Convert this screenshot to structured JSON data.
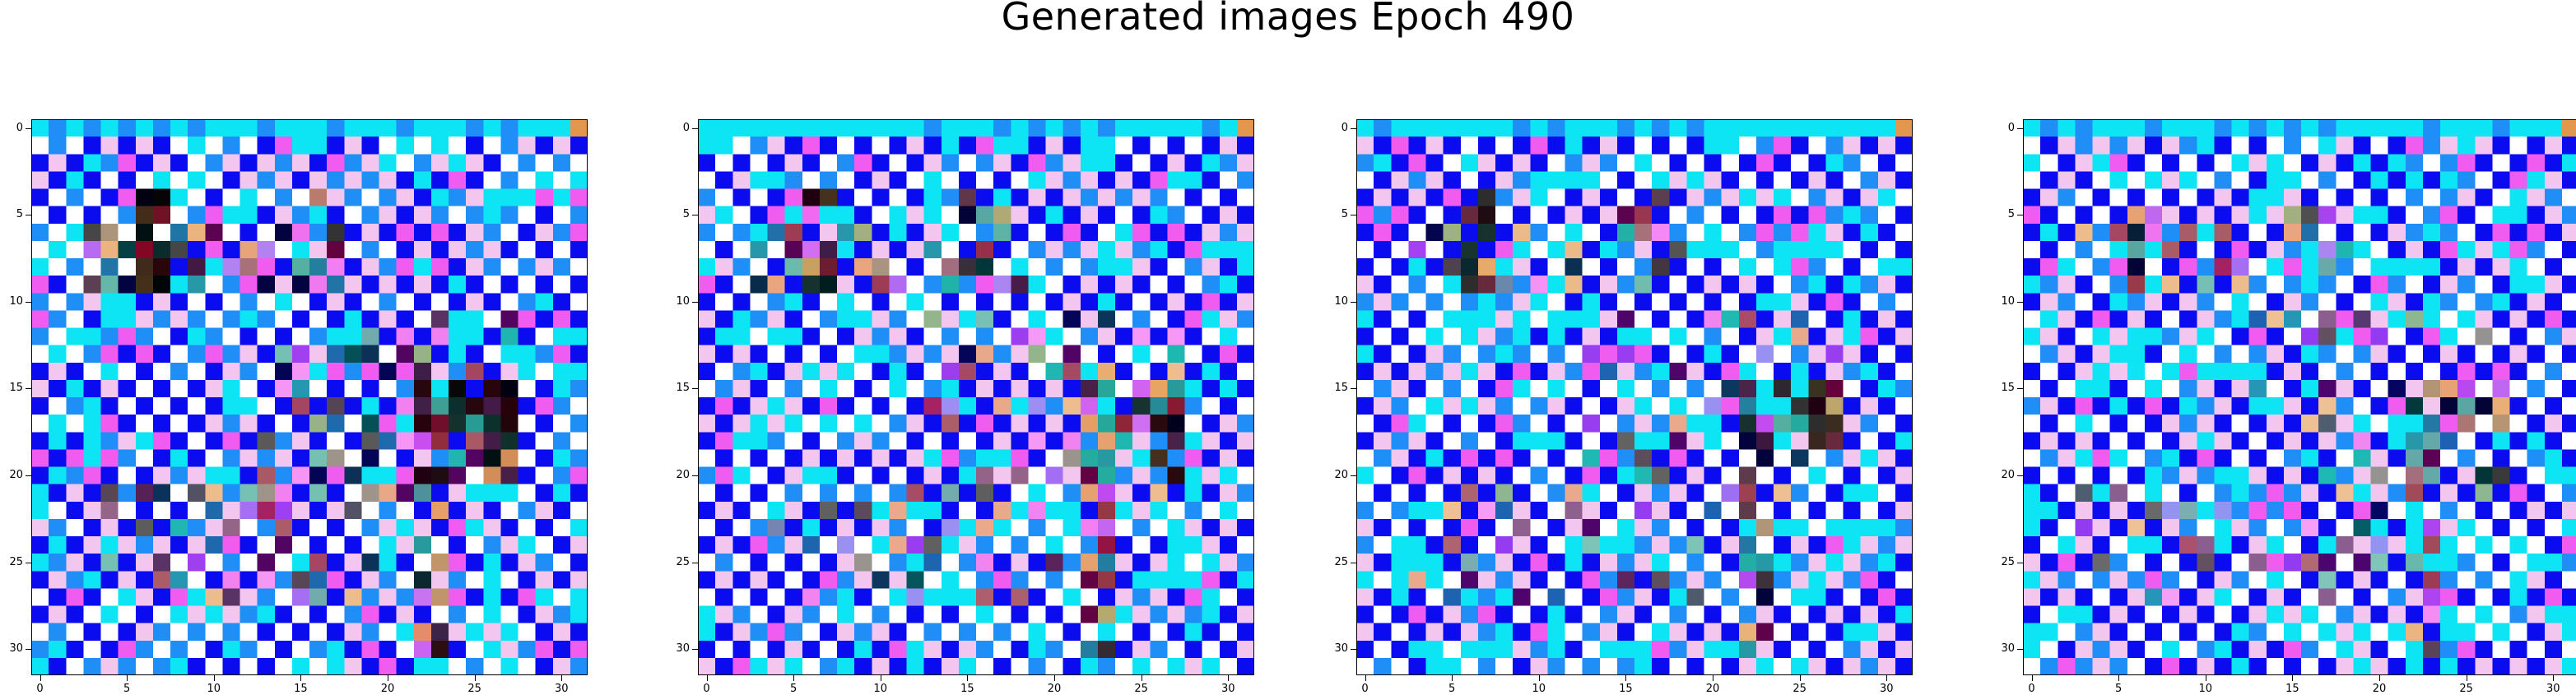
{
  "figure": {
    "title": "Generated images Epoch 490"
  },
  "axes": {
    "image_size": 32,
    "x_ticks": [
      "0",
      "5",
      "10",
      "15",
      "20",
      "25",
      "30"
    ],
    "y_ticks": [
      "0",
      "5",
      "10",
      "15",
      "20",
      "25",
      "30"
    ]
  },
  "panels": [
    {
      "name": "generated-image-1"
    },
    {
      "name": "generated-image-2"
    },
    {
      "name": "generated-image-3"
    },
    {
      "name": "generated-image-4"
    }
  ],
  "palette": {
    "blue": "#0b0bef",
    "cyan": "#0de5f5",
    "white": "#ffffff",
    "light_pink": "#f2c6ef",
    "sky": "#1f8ef7",
    "magenta": "#f05cf0",
    "black": "#000000",
    "dark_red": "#7a0014",
    "orange": "#e3974d",
    "teal": "#2a9c8a"
  }
}
